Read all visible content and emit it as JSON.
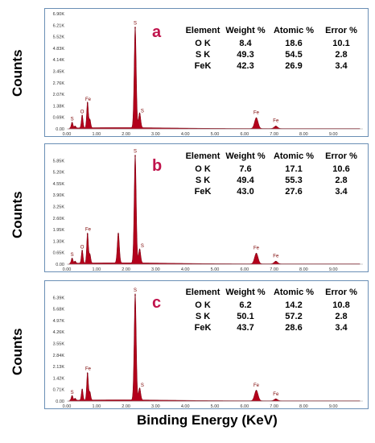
{
  "y_axis_label": "Counts",
  "x_axis_label": "Binding Energy (KeV)",
  "table_headers": [
    "Element",
    "Weight %",
    "Atomic %",
    "Error %"
  ],
  "chart_data": [
    {
      "type": "line",
      "panel_label": "a",
      "xlabel": "Binding Energy (KeV)",
      "ylabel": "Counts",
      "xlim": [
        0,
        10
      ],
      "x_ticks": [
        "0.00",
        "1.00",
        "2.00",
        "3.00",
        "4.00",
        "5.00",
        "6.00",
        "7.00",
        "8.00",
        "9.00"
      ],
      "y_ticks": [
        "0.00",
        "0.69K",
        "1.38K",
        "2.07K",
        "2.76K",
        "3.45K",
        "4.14K",
        "4.83K",
        "5.52K",
        "6.21K",
        "6.90K"
      ],
      "ylim": [
        0,
        6.9
      ],
      "peaks": [
        {
          "x": 0.18,
          "y": 0.35
        },
        {
          "x": 0.28,
          "y": 0.12
        },
        {
          "x": 0.52,
          "y": 0.78,
          "label": "O"
        },
        {
          "x": 0.7,
          "y": 1.55,
          "label": "Fe"
        },
        {
          "x": 0.78,
          "y": 0.5
        },
        {
          "x": 2.31,
          "y": 6.05,
          "label": "S"
        },
        {
          "x": 2.46,
          "y": 0.9,
          "label": "S"
        },
        {
          "x": 6.4,
          "y": 0.65,
          "label": "Fe"
        },
        {
          "x": 7.06,
          "y": 0.15,
          "label": "Fe"
        }
      ],
      "peak_labels": [
        {
          "text": "S",
          "x": 0.18,
          "y": 0.45
        },
        {
          "text": "O",
          "x": 0.52,
          "y": 0.9
        },
        {
          "text": "Fe",
          "x": 0.72,
          "y": 1.65
        },
        {
          "text": "S",
          "x": 2.31,
          "y": 6.2
        },
        {
          "text": "S",
          "x": 2.55,
          "y": 0.95
        },
        {
          "text": "Fe",
          "x": 6.4,
          "y": 0.85
        },
        {
          "text": "Fe",
          "x": 7.06,
          "y": 0.35
        }
      ],
      "composition": [
        {
          "element": "O K",
          "weight": "8.4",
          "atomic": "18.6",
          "error": "10.1"
        },
        {
          "element": "S K",
          "weight": "49.3",
          "atomic": "54.5",
          "error": "2.8"
        },
        {
          "element": "FeK",
          "weight": "42.3",
          "atomic": "26.9",
          "error": "3.4"
        }
      ]
    },
    {
      "type": "line",
      "panel_label": "b",
      "xlabel": "Binding Energy (KeV)",
      "ylabel": "Counts",
      "xlim": [
        0,
        10
      ],
      "x_ticks": [
        "0.00",
        "1.00",
        "2.00",
        "3.00",
        "4.00",
        "5.00",
        "6.00",
        "7.00",
        "8.00",
        "9.00"
      ],
      "y_ticks": [
        "0.00",
        "0.65K",
        "1.30K",
        "1.95K",
        "2.60K",
        "3.25K",
        "3.90K",
        "4.55K",
        "5.20K",
        "5.85K"
      ],
      "ylim": [
        0,
        6.5
      ],
      "peaks": [
        {
          "x": 0.18,
          "y": 0.3
        },
        {
          "x": 0.28,
          "y": 0.12
        },
        {
          "x": 0.52,
          "y": 0.75,
          "label": "O"
        },
        {
          "x": 0.7,
          "y": 1.7,
          "label": "Fe"
        },
        {
          "x": 0.78,
          "y": 0.5
        },
        {
          "x": 1.74,
          "y": 1.7
        },
        {
          "x": 2.31,
          "y": 6.1,
          "label": "S"
        },
        {
          "x": 2.46,
          "y": 0.8,
          "label": "S"
        },
        {
          "x": 6.4,
          "y": 0.6,
          "label": "Fe"
        },
        {
          "x": 7.06,
          "y": 0.15,
          "label": "Fe"
        }
      ],
      "peak_labels": [
        {
          "text": "S",
          "x": 0.18,
          "y": 0.4
        },
        {
          "text": "O",
          "x": 0.52,
          "y": 0.85
        },
        {
          "text": "Fe",
          "x": 0.72,
          "y": 1.85
        },
        {
          "text": "S",
          "x": 2.31,
          "y": 6.25
        },
        {
          "text": "S",
          "x": 2.55,
          "y": 0.9
        },
        {
          "text": "Fe",
          "x": 6.4,
          "y": 0.8
        },
        {
          "text": "Fe",
          "x": 7.06,
          "y": 0.35
        }
      ],
      "composition": [
        {
          "element": "O K",
          "weight": "7.6",
          "atomic": "17.1",
          "error": "10.6"
        },
        {
          "element": "S K",
          "weight": "49.4",
          "atomic": "55.3",
          "error": "2.8"
        },
        {
          "element": "FeK",
          "weight": "43.0",
          "atomic": "27.6",
          "error": "3.4"
        }
      ]
    },
    {
      "type": "line",
      "panel_label": "c",
      "xlabel": "Binding Energy (KeV)",
      "ylabel": "Counts",
      "xlim": [
        0,
        10
      ],
      "x_ticks": [
        "0.00",
        "1.00",
        "2.00",
        "3.00",
        "4.00",
        "5.00",
        "6.00",
        "7.00",
        "8.00",
        "9.00"
      ],
      "y_ticks": [
        "0.00",
        "0.71K",
        "1.42K",
        "2.13K",
        "2.84K",
        "3.55K",
        "4.26K",
        "4.97K",
        "5.68K",
        "6.39K"
      ],
      "ylim": [
        0,
        7.1
      ],
      "peaks": [
        {
          "x": 0.18,
          "y": 0.3
        },
        {
          "x": 0.28,
          "y": 0.12
        },
        {
          "x": 0.52,
          "y": 0.7
        },
        {
          "x": 0.7,
          "y": 1.7,
          "label": "Fe"
        },
        {
          "x": 0.78,
          "y": 0.5
        },
        {
          "x": 2.31,
          "y": 6.55,
          "label": "S"
        },
        {
          "x": 2.46,
          "y": 0.75,
          "label": "S"
        },
        {
          "x": 6.4,
          "y": 0.65,
          "label": "Fe"
        },
        {
          "x": 7.06,
          "y": 0.12,
          "label": "Fe"
        }
      ],
      "peak_labels": [
        {
          "text": "S",
          "x": 0.18,
          "y": 0.4
        },
        {
          "text": "Fe",
          "x": 0.72,
          "y": 1.85
        },
        {
          "text": "S",
          "x": 2.31,
          "y": 6.7
        },
        {
          "text": "S",
          "x": 2.55,
          "y": 0.85
        },
        {
          "text": "Fe",
          "x": 6.4,
          "y": 0.85
        },
        {
          "text": "Fe",
          "x": 7.06,
          "y": 0.3
        }
      ],
      "composition": [
        {
          "element": "O K",
          "weight": "6.2",
          "atomic": "14.2",
          "error": "10.8"
        },
        {
          "element": "S K",
          "weight": "50.1",
          "atomic": "57.2",
          "error": "2.8"
        },
        {
          "element": "FeK",
          "weight": "43.7",
          "atomic": "28.6",
          "error": "3.4"
        }
      ]
    }
  ],
  "colors": {
    "spectrum_fill": "#b3001b",
    "spectrum_line": "#7a0010",
    "panel_border": "#6a8fb5",
    "panel_letter": "#c0144c",
    "peak_label": "#7a0000",
    "axis_text": "#333333"
  }
}
